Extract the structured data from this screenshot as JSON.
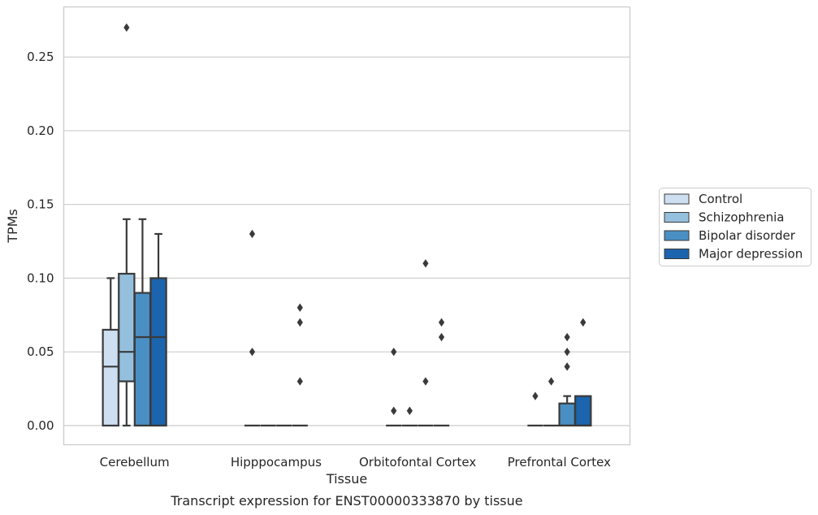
{
  "chart_data": {
    "type": "box",
    "title": "",
    "caption": "Transcript expression for ENST00000333870 by tissue",
    "xlabel": "Tissue",
    "ylabel": "TPMs",
    "ylim": [
      -0.013,
      0.284
    ],
    "yticks": [
      "0.00",
      "0.05",
      "0.10",
      "0.15",
      "0.20",
      "0.25"
    ],
    "categories": [
      "Cerebellum",
      "Hipppocampus",
      "Orbitofontal Cortex",
      "Prefrontal Cortex"
    ],
    "grid": "horizontal",
    "legend_position": "right",
    "series": [
      {
        "name": "Control",
        "color": "#cddff1",
        "boxes": [
          {
            "q1": 0.0,
            "median": 0.04,
            "q3": 0.065,
            "whislo": 0.0,
            "whishi": 0.1,
            "fliers": []
          },
          {
            "q1": 0.0,
            "median": 0.0,
            "q3": 0.0,
            "whislo": 0.0,
            "whishi": 0.0,
            "fliers": [
              0.05,
              0.13
            ]
          },
          {
            "q1": 0.0,
            "median": 0.0,
            "q3": 0.0,
            "whislo": 0.0,
            "whishi": 0.0,
            "fliers": [
              0.01,
              0.05
            ]
          },
          {
            "q1": 0.0,
            "median": 0.0,
            "q3": 0.0,
            "whislo": 0.0,
            "whishi": 0.0,
            "fliers": [
              0.02
            ]
          }
        ]
      },
      {
        "name": "Schizophrenia",
        "color": "#94c0de",
        "boxes": [
          {
            "q1": 0.03,
            "median": 0.05,
            "q3": 0.103,
            "whislo": 0.0,
            "whishi": 0.14,
            "fliers": [
              0.27
            ]
          },
          {
            "q1": 0.0,
            "median": 0.0,
            "q3": 0.0,
            "whislo": 0.0,
            "whishi": 0.0,
            "fliers": []
          },
          {
            "q1": 0.0,
            "median": 0.0,
            "q3": 0.0,
            "whislo": 0.0,
            "whishi": 0.0,
            "fliers": [
              0.01
            ]
          },
          {
            "q1": 0.0,
            "median": 0.0,
            "q3": 0.0,
            "whislo": 0.0,
            "whishi": 0.0,
            "fliers": [
              0.03
            ]
          }
        ]
      },
      {
        "name": "Bipolar disorder",
        "color": "#4a8fc4",
        "boxes": [
          {
            "q1": 0.0,
            "median": 0.06,
            "q3": 0.09,
            "whislo": 0.0,
            "whishi": 0.14,
            "fliers": []
          },
          {
            "q1": 0.0,
            "median": 0.0,
            "q3": 0.0,
            "whislo": 0.0,
            "whishi": 0.0,
            "fliers": []
          },
          {
            "q1": 0.0,
            "median": 0.0,
            "q3": 0.0,
            "whislo": 0.0,
            "whishi": 0.0,
            "fliers": [
              0.03,
              0.11
            ]
          },
          {
            "q1": 0.0,
            "median": 0.0,
            "q3": 0.015,
            "whislo": 0.0,
            "whishi": 0.02,
            "fliers": [
              0.04,
              0.05,
              0.06
            ]
          }
        ]
      },
      {
        "name": "Major depression",
        "color": "#1c64ad",
        "boxes": [
          {
            "q1": 0.0,
            "median": 0.06,
            "q3": 0.1,
            "whislo": 0.0,
            "whishi": 0.13,
            "fliers": []
          },
          {
            "q1": 0.0,
            "median": 0.0,
            "q3": 0.0,
            "whislo": 0.0,
            "whishi": 0.0,
            "fliers": [
              0.03,
              0.07,
              0.08
            ]
          },
          {
            "q1": 0.0,
            "median": 0.0,
            "q3": 0.0,
            "whislo": 0.0,
            "whishi": 0.0,
            "fliers": [
              0.06,
              0.07
            ]
          },
          {
            "q1": 0.0,
            "median": 0.0,
            "q3": 0.02,
            "whislo": 0.0,
            "whishi": 0.02,
            "fliers": [
              0.07
            ]
          }
        ]
      }
    ]
  }
}
